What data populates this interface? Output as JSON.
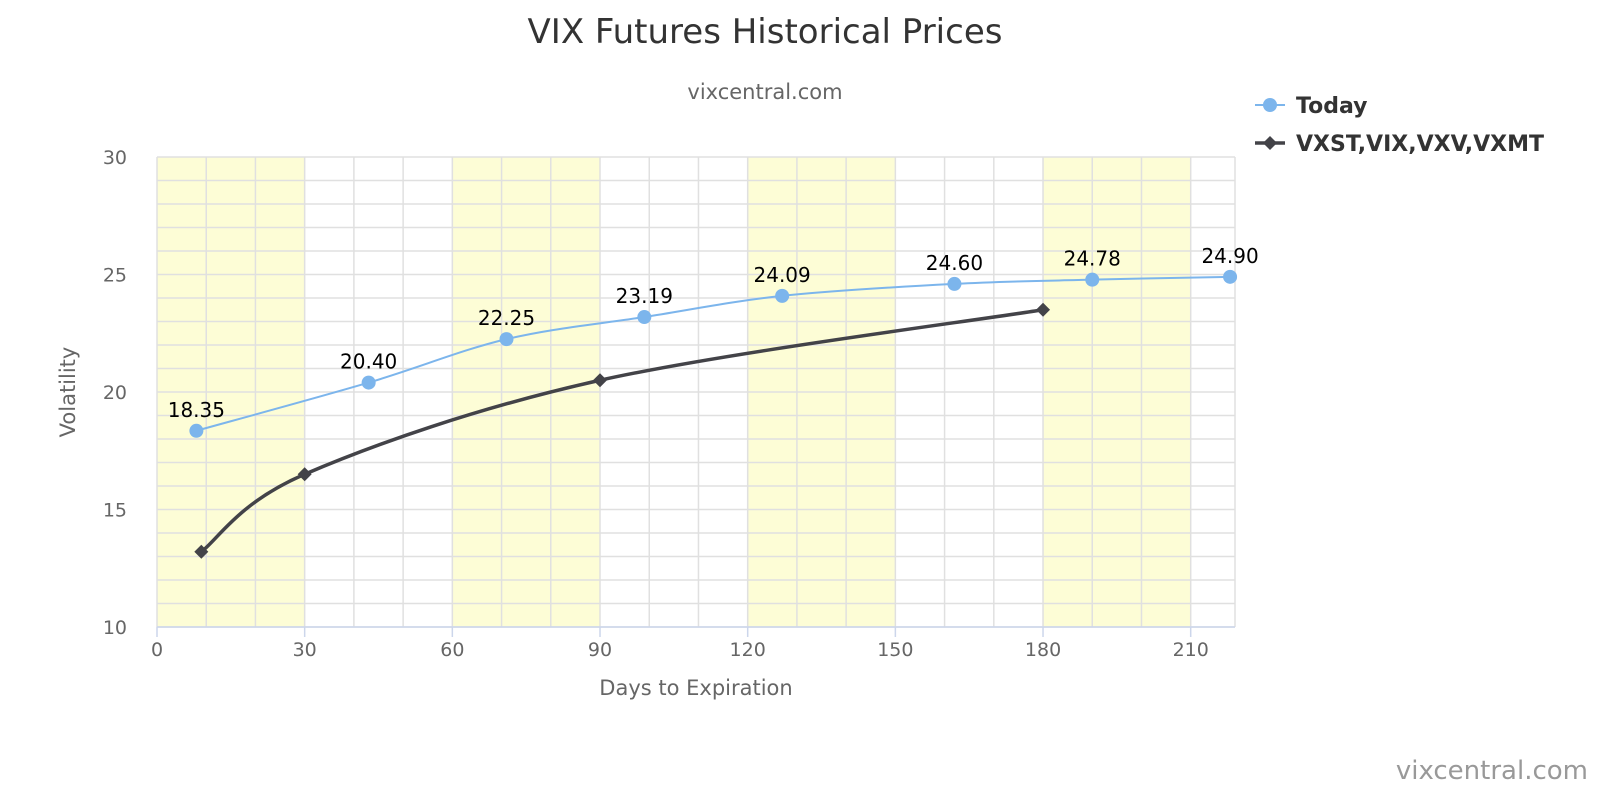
{
  "chart_data": {
    "type": "line",
    "title": "VIX Futures Historical Prices",
    "subtitle": "vixcentral.com",
    "xlabel": "Days to Expiration",
    "ylabel": "Volatility",
    "xlim": [
      0,
      219
    ],
    "ylim": [
      10,
      30
    ],
    "x_ticks": [
      0,
      30,
      60,
      90,
      120,
      150,
      180,
      210
    ],
    "x_tick_labels": [
      "0",
      "30",
      "60",
      "90",
      "120",
      "150",
      "180",
      "210"
    ],
    "y_ticks": [
      10,
      15,
      20,
      25,
      30
    ],
    "y_tick_labels": [
      "10",
      "15",
      "20",
      "25",
      "30"
    ],
    "grid": true,
    "legend_position": "top-right",
    "shaded_x_bands": [
      [
        0,
        30
      ],
      [
        60,
        90
      ],
      [
        120,
        150
      ],
      [
        180,
        210
      ]
    ],
    "band_color": "#fdfdd6",
    "series": [
      {
        "name": "Today",
        "color": "#7cb5ec",
        "marker": "circle",
        "x": [
          8,
          43,
          71,
          99,
          127,
          162,
          190,
          218
        ],
        "y": [
          18.35,
          20.4,
          22.25,
          23.19,
          24.09,
          24.6,
          24.78,
          24.9
        ],
        "labels": [
          "18.35",
          "20.40",
          "22.25",
          "23.19",
          "24.09",
          "24.60",
          "24.78",
          "24.90"
        ]
      },
      {
        "name": "VXST,VIX,VXV,VXMT",
        "color": "#434348",
        "marker": "diamond",
        "x": [
          9,
          30,
          90,
          180
        ],
        "y": [
          13.2,
          16.5,
          20.5,
          23.5
        ]
      }
    ],
    "credits": "vixcentral.com"
  }
}
